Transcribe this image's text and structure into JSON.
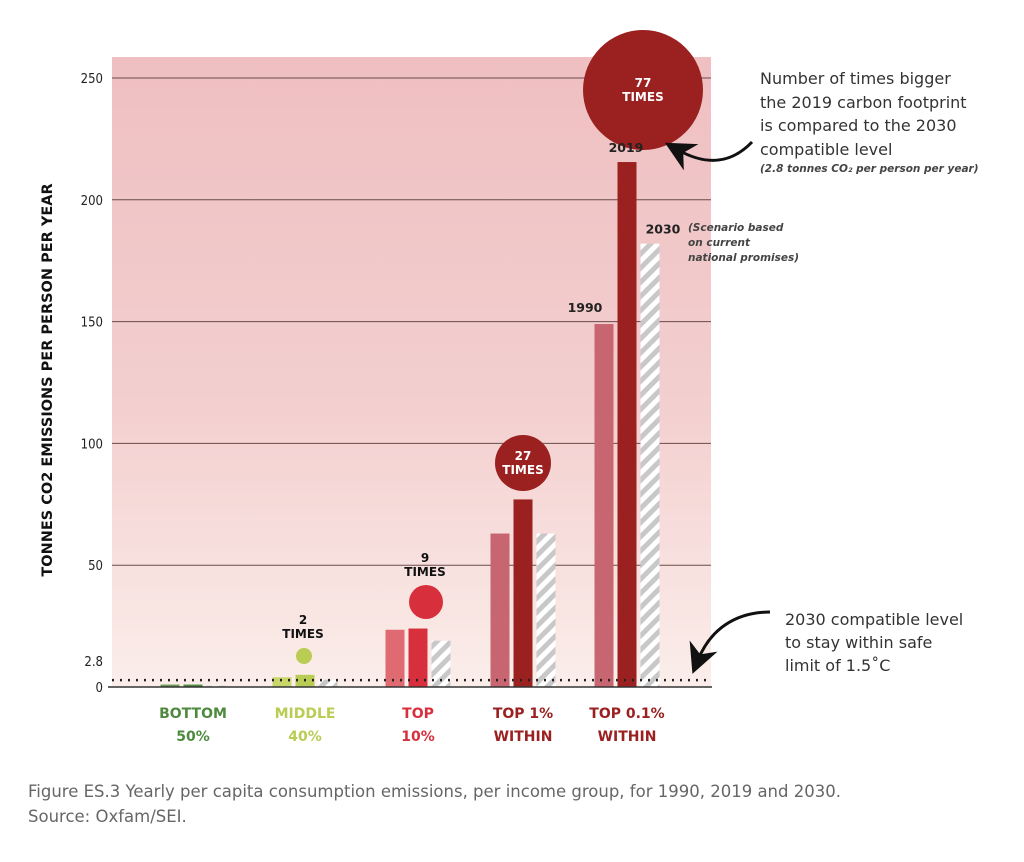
{
  "chart_data": {
    "type": "bar",
    "ylabel": "TONNES CO2 EMISSIONS PER PERSON PER YEAR",
    "ylim": [
      0,
      260
    ],
    "yticks": [
      0,
      50,
      100,
      150,
      200,
      250
    ],
    "grid": true,
    "reference_line": {
      "label": "2.8",
      "value": 2.8
    },
    "series": [
      {
        "name": "1990",
        "values": [
          1,
          4,
          23.5,
          63,
          149
        ]
      },
      {
        "name": "2019",
        "values": [
          1,
          5,
          24,
          77,
          215.5
        ]
      },
      {
        "name": "2030",
        "values": [
          0.5,
          3,
          19,
          63,
          182
        ]
      }
    ],
    "categories": [
      {
        "line1": "BOTTOM",
        "line2": "50%",
        "color": "#4e8a3e"
      },
      {
        "line1": "MIDDLE",
        "line2": "40%",
        "color": "#b9cc54"
      },
      {
        "line1": "TOP",
        "line2": "10%",
        "color": "#d7303c"
      },
      {
        "line1": "TOP 1%",
        "line2": "WITHIN",
        "color": "#9b2020"
      },
      {
        "line1": "TOP 0.1%",
        "line2": "WITHIN",
        "color": "#9b2020"
      }
    ],
    "bar_colors": [
      [
        "#6c9a55",
        "#4e8a3e",
        "#cfcfcf"
      ],
      [
        "#c9d66a",
        "#b9cc54",
        "#cfcfcf"
      ],
      [
        "#e06a72",
        "#d7303c",
        "#cfcfcf"
      ],
      [
        "#c76670",
        "#9b2020",
        "#cfcfcf"
      ],
      [
        "#c76670",
        "#9b2020",
        "#cfcfcf"
      ]
    ],
    "multipliers": [
      {
        "value": "2",
        "label": "TIMES"
      },
      {
        "value": "9",
        "label": "TIMES"
      },
      {
        "value": "27",
        "label": "TIMES"
      },
      {
        "value": "77",
        "label": "TIMES"
      }
    ],
    "year_labels": {
      "y1990": "1990",
      "y2019": "2019",
      "y2030": "2030"
    },
    "annotations": {
      "bubble_note": [
        "Number of times bigger",
        "the 2019 carbon footprint",
        "is compared to the 2030",
        "compatible level"
      ],
      "bubble_note_sub": "(2.8 tonnes CO₂ per person per year)",
      "scenario_note": [
        "(Scenario based",
        "on current",
        "national promises)"
      ],
      "line_note": [
        "2030 compatible level",
        "to stay within safe",
        "limit of 1.5˚C"
      ]
    }
  },
  "caption": {
    "line1": "Figure ES.3 Yearly per capita consumption emissions, per income group, for 1990, 2019 and 2030.",
    "line2": "Source: Oxfam/SEI."
  }
}
